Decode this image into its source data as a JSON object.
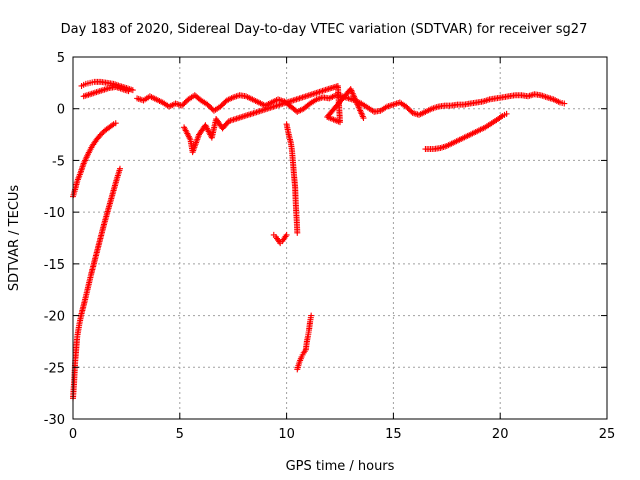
{
  "chart_data": {
    "type": "scatter",
    "title": "Day 183 of 2020, Sidereal Day-to-day VTEC variation (SDTVAR) for receiver sg27",
    "xlabel": "GPS time / hours",
    "ylabel": "SDTVAR / TECUs",
    "xlim": [
      0,
      25
    ],
    "ylim": [
      -30,
      5
    ],
    "xticks": [
      0,
      5,
      10,
      15,
      20,
      25
    ],
    "yticks": [
      5,
      0,
      -5,
      -10,
      -15,
      -20,
      -25,
      -30
    ],
    "grid": true,
    "legend": "none",
    "marker": "+",
    "color": "#ff0000",
    "series": [
      {
        "name": "upper arc",
        "points": [
          [
            0.4,
            2.2
          ],
          [
            0.6,
            2.4
          ],
          [
            0.8,
            2.5
          ],
          [
            1.0,
            2.6
          ],
          [
            1.3,
            2.6
          ],
          [
            1.6,
            2.5
          ],
          [
            1.9,
            2.4
          ],
          [
            2.2,
            2.2
          ],
          [
            2.5,
            2.0
          ],
          [
            2.8,
            1.8
          ]
        ]
      },
      {
        "name": "upper arc 2",
        "points": [
          [
            0.5,
            1.2
          ],
          [
            0.8,
            1.4
          ],
          [
            1.1,
            1.6
          ],
          [
            1.4,
            1.8
          ],
          [
            1.7,
            2.0
          ],
          [
            2.0,
            2.1
          ],
          [
            2.3,
            1.9
          ],
          [
            2.6,
            1.7
          ]
        ]
      },
      {
        "name": "rising arc A",
        "points": [
          [
            0.0,
            -8.5
          ],
          [
            0.1,
            -7.8
          ],
          [
            0.2,
            -7.0
          ],
          [
            0.35,
            -6.2
          ],
          [
            0.5,
            -5.3
          ],
          [
            0.7,
            -4.4
          ],
          [
            0.9,
            -3.6
          ],
          [
            1.1,
            -3.0
          ],
          [
            1.3,
            -2.5
          ],
          [
            1.5,
            -2.1
          ],
          [
            1.7,
            -1.8
          ],
          [
            1.9,
            -1.5
          ],
          [
            2.0,
            -1.4
          ]
        ]
      },
      {
        "name": "rising arc B",
        "points": [
          [
            0.0,
            -28.0
          ],
          [
            0.05,
            -26.5
          ],
          [
            0.1,
            -24.5
          ],
          [
            0.2,
            -22.0
          ],
          [
            0.3,
            -20.8
          ],
          [
            0.4,
            -19.8
          ],
          [
            0.55,
            -18.6
          ],
          [
            0.7,
            -17.3
          ],
          [
            0.85,
            -16.0
          ],
          [
            1.0,
            -14.8
          ],
          [
            1.15,
            -13.6
          ],
          [
            1.3,
            -12.4
          ],
          [
            1.45,
            -11.2
          ],
          [
            1.6,
            -10.1
          ],
          [
            1.75,
            -9.0
          ],
          [
            1.9,
            -7.9
          ],
          [
            2.05,
            -6.8
          ],
          [
            2.2,
            -5.8
          ]
        ]
      },
      {
        "name": "main band",
        "points": [
          [
            3.0,
            1.0
          ],
          [
            3.3,
            0.8
          ],
          [
            3.6,
            1.2
          ],
          [
            3.9,
            0.9
          ],
          [
            4.2,
            0.6
          ],
          [
            4.5,
            0.2
          ],
          [
            4.8,
            0.5
          ],
          [
            5.1,
            0.3
          ],
          [
            5.4,
            0.9
          ],
          [
            5.7,
            1.3
          ],
          [
            6.0,
            0.8
          ],
          [
            6.3,
            0.4
          ],
          [
            6.6,
            -0.2
          ],
          [
            6.9,
            0.2
          ],
          [
            7.2,
            0.8
          ],
          [
            7.5,
            1.1
          ],
          [
            7.8,
            1.3
          ],
          [
            8.1,
            1.2
          ],
          [
            8.4,
            0.9
          ],
          [
            8.7,
            0.6
          ],
          [
            9.0,
            0.3
          ],
          [
            9.3,
            0.6
          ],
          [
            9.6,
            0.9
          ],
          [
            9.9,
            0.7
          ],
          [
            10.2,
            0.2
          ],
          [
            10.5,
            -0.3
          ],
          [
            10.8,
            0.0
          ],
          [
            11.1,
            0.5
          ],
          [
            11.4,
            0.9
          ],
          [
            11.7,
            1.1
          ],
          [
            12.0,
            1.0
          ],
          [
            12.3,
            1.3
          ],
          [
            12.6,
            1.2
          ],
          [
            12.9,
            1.0
          ],
          [
            13.2,
            0.8
          ],
          [
            13.5,
            0.5
          ],
          [
            13.8,
            0.1
          ],
          [
            14.1,
            -0.3
          ],
          [
            14.4,
            -0.2
          ],
          [
            14.7,
            0.2
          ],
          [
            15.0,
            0.4
          ],
          [
            15.3,
            0.6
          ],
          [
            15.6,
            0.2
          ],
          [
            15.9,
            -0.4
          ],
          [
            16.2,
            -0.6
          ],
          [
            16.5,
            -0.3
          ],
          [
            16.8,
            0.0
          ],
          [
            17.1,
            0.2
          ],
          [
            17.4,
            0.3
          ],
          [
            17.7,
            0.3
          ],
          [
            18.0,
            0.4
          ],
          [
            18.3,
            0.4
          ],
          [
            18.6,
            0.5
          ],
          [
            18.9,
            0.6
          ],
          [
            19.2,
            0.7
          ],
          [
            19.5,
            0.9
          ],
          [
            19.8,
            1.0
          ],
          [
            20.1,
            1.1
          ],
          [
            20.4,
            1.2
          ],
          [
            20.7,
            1.3
          ],
          [
            21.0,
            1.3
          ],
          [
            21.3,
            1.2
          ],
          [
            21.6,
            1.4
          ],
          [
            21.9,
            1.3
          ],
          [
            22.2,
            1.1
          ],
          [
            22.5,
            0.9
          ],
          [
            22.8,
            0.6
          ],
          [
            23.0,
            0.5
          ]
        ]
      },
      {
        "name": "band scatter",
        "points": [
          [
            5.2,
            -1.8
          ],
          [
            5.5,
            -3.0
          ],
          [
            5.6,
            -4.2
          ],
          [
            5.9,
            -2.5
          ],
          [
            6.2,
            -1.6
          ],
          [
            6.5,
            -2.8
          ],
          [
            6.7,
            -1.0
          ],
          [
            7.0,
            -1.9
          ],
          [
            7.3,
            -1.2
          ],
          [
            12.4,
            2.2
          ],
          [
            12.5,
            -1.3
          ],
          [
            11.9,
            -0.8
          ],
          [
            13.0,
            1.9
          ],
          [
            13.6,
            -0.9
          ]
        ]
      },
      {
        "name": "dip 10h",
        "points": [
          [
            10.0,
            -1.5
          ],
          [
            10.1,
            -2.5
          ],
          [
            10.2,
            -3.3
          ],
          [
            10.25,
            -4.0
          ],
          [
            10.3,
            -5.2
          ],
          [
            10.35,
            -6.5
          ],
          [
            10.4,
            -7.6
          ],
          [
            10.42,
            -8.7
          ],
          [
            10.45,
            -10.0
          ],
          [
            10.48,
            -11.0
          ],
          [
            10.5,
            -12.0
          ]
        ]
      },
      {
        "name": "dip 9.5h",
        "points": [
          [
            9.4,
            -12.2
          ],
          [
            9.5,
            -12.4
          ],
          [
            9.6,
            -12.7
          ],
          [
            9.7,
            -13.0
          ],
          [
            9.8,
            -12.8
          ],
          [
            9.9,
            -12.5
          ],
          [
            10.0,
            -12.2
          ]
        ]
      },
      {
        "name": "deep arc",
        "points": [
          [
            10.5,
            -25.2
          ],
          [
            10.6,
            -24.5
          ],
          [
            10.7,
            -24.0
          ],
          [
            10.8,
            -23.6
          ],
          [
            10.9,
            -23.3
          ],
          [
            10.95,
            -22.5
          ],
          [
            11.0,
            -22.0
          ],
          [
            11.05,
            -21.4
          ],
          [
            11.1,
            -20.6
          ],
          [
            11.15,
            -20.0
          ]
        ]
      },
      {
        "name": "late arc",
        "points": [
          [
            16.5,
            -3.9
          ],
          [
            16.9,
            -3.9
          ],
          [
            17.2,
            -3.8
          ],
          [
            17.5,
            -3.6
          ],
          [
            17.8,
            -3.3
          ],
          [
            18.1,
            -3.0
          ],
          [
            18.4,
            -2.7
          ],
          [
            18.7,
            -2.4
          ],
          [
            19.0,
            -2.1
          ],
          [
            19.3,
            -1.8
          ],
          [
            19.6,
            -1.4
          ],
          [
            19.9,
            -1.0
          ],
          [
            20.1,
            -0.7
          ],
          [
            20.3,
            -0.5
          ]
        ]
      }
    ]
  }
}
